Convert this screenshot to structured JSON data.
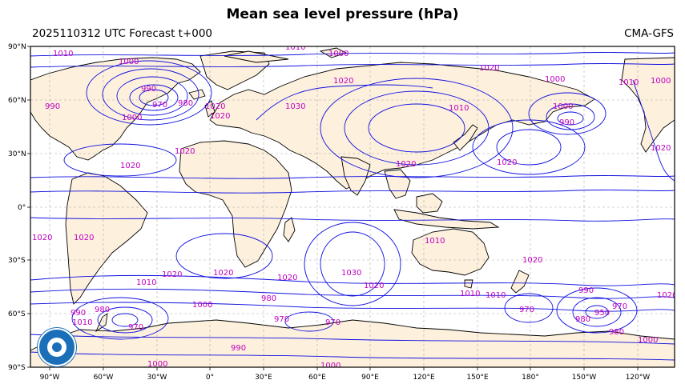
{
  "title": "Mean sea level pressure (hPa)",
  "subtitle_left": "2025110312 UTC Forecast t+000",
  "subtitle_right": "CMA-GFS",
  "axes": {
    "lat_labels": [
      "90°N",
      "60°N",
      "30°N",
      "0°",
      "30°S",
      "60°S",
      "90°S"
    ],
    "lon_labels": [
      "90°W",
      "60°W",
      "30°W",
      "0°",
      "30°E",
      "60°E",
      "90°E",
      "120°E",
      "150°E",
      "180°",
      "150°W",
      "120°W"
    ]
  },
  "contour_labels": [
    "1010",
    "1010",
    "1000",
    "1000",
    "990",
    "990",
    "970",
    "980",
    "1000",
    "1020",
    "1030",
    "1020",
    "1010",
    "1020",
    "1000",
    "1000",
    "990",
    "1010",
    "1000",
    "1020",
    "1020",
    "1020",
    "1020",
    "1020",
    "1020",
    "1020",
    "1020",
    "1020",
    "1030",
    "1010",
    "1010",
    "1010",
    "1020",
    "1020",
    "1010",
    "1020",
    "1020",
    "1010",
    "1000",
    "980",
    "980",
    "970",
    "990",
    "970",
    "980",
    "970",
    "970",
    "990",
    "950",
    "970",
    "980",
    "990",
    "1000",
    "1000",
    "1000",
    "1020"
  ],
  "colors": {
    "land": "#fdf0dd",
    "ocean": "#ffffff",
    "contour": "#1010e0",
    "contour_label": "#c000c0",
    "coast": "#000000",
    "grid": "#aaaaaa"
  },
  "logo": "cma-logo"
}
